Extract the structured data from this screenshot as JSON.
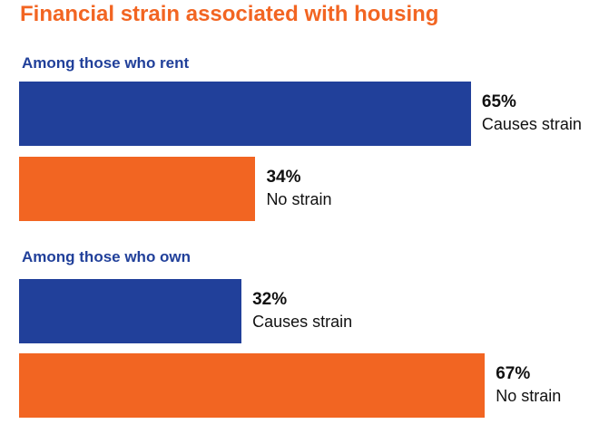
{
  "chart_data": {
    "type": "bar",
    "orientation": "horizontal",
    "title": "Financial strain associated with housing",
    "xlim": [
      0,
      100
    ],
    "colors": {
      "Causes strain": "#21409a",
      "No strain": "#f26522"
    },
    "groups": [
      {
        "label": "Among those who rent",
        "bars": [
          {
            "category": "Causes strain",
            "value": 65,
            "value_label": "65%"
          },
          {
            "category": "No strain",
            "value": 34,
            "value_label": "34%"
          }
        ]
      },
      {
        "label": "Among those who own",
        "bars": [
          {
            "category": "Causes strain",
            "value": 32,
            "value_label": "32%"
          },
          {
            "category": "No strain",
            "value": 67,
            "value_label": "67%"
          }
        ]
      }
    ]
  }
}
